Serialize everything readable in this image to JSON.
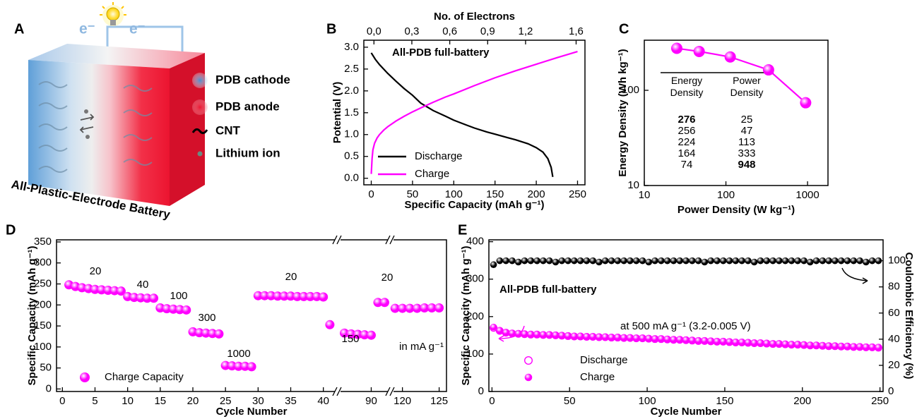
{
  "panel_labels": [
    "A",
    "B",
    "C",
    "D",
    "E"
  ],
  "diagram": {
    "title": "All-Plastic-Electrode Battery",
    "electron_labels": [
      "e⁻",
      "e⁻"
    ],
    "legend": [
      "PDB cathode",
      "PDB anode",
      "CNT",
      "Lithium ion"
    ]
  },
  "chart_data": [
    {
      "type": "line",
      "annotations": [
        "All-PDB full-battery"
      ],
      "xlabel": "Specific Capacity (mAh g⁻¹)",
      "ylabel": "Potential (V)",
      "x2label": "No. of Electrons",
      "xlim": [
        -9,
        259
      ],
      "xticks": [
        0,
        50,
        100,
        150,
        200,
        250
      ],
      "x2lim": [
        -0.08,
        1.67
      ],
      "x2ticks": [
        {
          "value": 0,
          "label": "0,0"
        },
        {
          "value": 0.3,
          "label": "0,3"
        },
        {
          "value": 0.6,
          "label": "0,6"
        },
        {
          "value": 0.9,
          "label": "0,9"
        },
        {
          "value": 1.2,
          "label": "1,2"
        },
        {
          "value": 1.6,
          "label": "1,6"
        }
      ],
      "ylim": [
        -0.15,
        3.16
      ],
      "yticks": [
        {
          "value": 0,
          "label": "0.0"
        },
        0.5,
        {
          "value": 1,
          "label": "1.0"
        },
        1.5,
        {
          "value": 2,
          "label": "2.0"
        },
        2.5,
        {
          "value": 3,
          "label": "3.0"
        }
      ],
      "legend": "lower left",
      "series": [
        {
          "name": "Discharge",
          "color": "#000000",
          "x": [
            0,
            5,
            10,
            20,
            30,
            40,
            50,
            60,
            75,
            90,
            100,
            115,
            125,
            140,
            150,
            165,
            175,
            190,
            200,
            208,
            214,
            218,
            220
          ],
          "values": [
            2.87,
            2.72,
            2.6,
            2.4,
            2.22,
            2.05,
            1.9,
            1.72,
            1.55,
            1.42,
            1.33,
            1.22,
            1.15,
            1.06,
            1.01,
            0.93,
            0.88,
            0.79,
            0.7,
            0.6,
            0.45,
            0.25,
            0.03
          ]
        },
        {
          "name": "Charge",
          "color": "#ff00ff",
          "x": [
            0,
            1,
            2,
            4,
            7,
            10,
            15,
            20,
            30,
            40,
            50,
            60,
            75,
            90,
            100,
            125,
            150,
            175,
            200,
            225,
            250
          ],
          "values": [
            0.1,
            0.45,
            0.65,
            0.8,
            0.92,
            1.0,
            1.1,
            1.18,
            1.31,
            1.42,
            1.52,
            1.61,
            1.74,
            1.86,
            1.93,
            2.12,
            2.3,
            2.46,
            2.61,
            2.76,
            2.9
          ]
        }
      ]
    },
    {
      "type": "line",
      "markers": true,
      "xlabel": "Power Density (W kg⁻¹)",
      "ylabel": "Energy Density (Wh kg⁻¹)",
      "xscale": "log",
      "yscale": "log",
      "xlim": [
        10,
        1780
      ],
      "xticks": [
        10,
        100,
        1000
      ],
      "ylim": [
        10,
        336
      ],
      "yticks": [
        10,
        100
      ],
      "x": [
        25,
        47,
        113,
        333,
        948
      ],
      "series": [
        {
          "color": "#ff00ff",
          "values": [
            276,
            256,
            224,
            164,
            74
          ]
        }
      ],
      "table": {
        "columns": [
          "Energy Density",
          "Power Density"
        ]
      }
    },
    {
      "type": "scatter",
      "xlabel": "Cycle Number",
      "ylabel": "Specific Capacity (mAh g⁻¹)",
      "xlim_segments": [
        [
          -0.9,
          42.2
        ],
        [
          85,
          92.9
        ],
        [
          118.4,
          126
        ]
      ],
      "xticks": [
        0,
        5,
        10,
        15,
        20,
        25,
        30,
        35,
        40,
        90,
        120,
        125
      ],
      "ylim": [
        -6,
        355
      ],
      "yticks": [
        0,
        50,
        100,
        150,
        200,
        250,
        300,
        350
      ],
      "annotations": [
        "20",
        "40",
        "100",
        "300",
        "1000",
        "20",
        "150",
        "20",
        "in mA g⁻¹"
      ],
      "legend": "lower left",
      "series": [
        {
          "name": "Charge Capacity",
          "color": "#ff00ff",
          "x": [
            1,
            2,
            3,
            4,
            5,
            6,
            7,
            8,
            9,
            10,
            11,
            12,
            13,
            14,
            15,
            16,
            17,
            18,
            19,
            20,
            21,
            22,
            23,
            24,
            25,
            26,
            27,
            28,
            29,
            30,
            31,
            32,
            33,
            34,
            35,
            36,
            37,
            38,
            39,
            40,
            41,
            86,
            87,
            88,
            89,
            90,
            91,
            92,
            119,
            120,
            121,
            122,
            123,
            124,
            125
          ],
          "values": [
            248,
            244,
            241,
            239,
            237,
            236,
            235,
            234,
            233,
            220,
            218,
            217,
            216,
            216,
            193,
            191,
            190,
            189,
            188,
            136,
            134,
            133,
            132,
            131,
            56,
            55,
            54,
            54,
            53,
            222,
            222,
            222,
            221,
            221,
            221,
            220,
            220,
            220,
            220,
            219,
            153,
            133,
            131,
            130,
            129,
            128,
            206,
            206,
            192,
            192,
            192,
            192,
            193,
            193,
            193
          ]
        }
      ]
    },
    {
      "type": "scatter",
      "xlabel": "Cycle Number",
      "ylabel": "Specific Capacity (mAh g⁻¹)",
      "y2label": "Coulombic Efficiency (%)",
      "xlim": [
        -2,
        252
      ],
      "xticks": [
        0,
        50,
        100,
        150,
        200,
        250
      ],
      "ylim": [
        0,
        405
      ],
      "yticks": [
        0,
        100,
        200,
        300,
        400
      ],
      "y2lim": [
        0,
        116
      ],
      "y2ticks": [
        0,
        20,
        40,
        60,
        80,
        100
      ],
      "annotations": [
        "All-PDB full-battery",
        "at 500 mA g⁻¹ (3.2-0.005 V)"
      ],
      "legend": "lower left",
      "x": [
        1,
        5,
        9,
        13,
        17,
        21,
        25,
        29,
        33,
        37,
        41,
        45,
        49,
        53,
        57,
        61,
        65,
        69,
        73,
        77,
        81,
        85,
        89,
        93,
        97,
        101,
        105,
        109,
        113,
        117,
        121,
        125,
        129,
        133,
        137,
        141,
        145,
        149,
        153,
        157,
        161,
        165,
        169,
        173,
        177,
        181,
        185,
        189,
        193,
        197,
        201,
        205,
        209,
        213,
        217,
        221,
        225,
        229,
        233,
        237,
        241,
        245,
        249
      ],
      "series": [
        {
          "name": "Discharge",
          "color": "#ff00ff",
          "marker": "open",
          "values": [
            170,
            162,
            157,
            155,
            154,
            153,
            152,
            152,
            151,
            151,
            150,
            149,
            148,
            147,
            147,
            146,
            146,
            145,
            145,
            144,
            144,
            143,
            143,
            142,
            142,
            141,
            140,
            140,
            139,
            138,
            138,
            137,
            136,
            135,
            135,
            134,
            133,
            133,
            132,
            131,
            131,
            130,
            129,
            129,
            128,
            127,
            127,
            126,
            125,
            125,
            124,
            123,
            123,
            122,
            121,
            121,
            120,
            120,
            119,
            119,
            118,
            118,
            117
          ]
        },
        {
          "name": "Charge",
          "color": "#ff00ff",
          "marker": "filled",
          "values": [
            172,
            163,
            158,
            156,
            155,
            154,
            153,
            153,
            152,
            152,
            151,
            150,
            149,
            148,
            148,
            147,
            147,
            146,
            146,
            145,
            145,
            144,
            144,
            143,
            143,
            142,
            141,
            141,
            140,
            139,
            139,
            138,
            137,
            136,
            136,
            135,
            134,
            134,
            133,
            132,
            132,
            131,
            130,
            130,
            129,
            128,
            128,
            127,
            126,
            126,
            125,
            124,
            124,
            123,
            122,
            122,
            121,
            121,
            120,
            120,
            119,
            119,
            118
          ]
        },
        {
          "color": "#000000",
          "marker": "filled",
          "axis": "y2",
          "values": [
            97,
            100,
            100,
            100,
            99,
            100,
            100,
            100,
            100,
            100,
            99,
            100,
            100,
            100,
            100,
            100,
            100,
            99,
            100,
            100,
            100,
            100,
            100,
            100,
            100,
            99,
            100,
            100,
            100,
            100,
            100,
            100,
            100,
            100,
            99,
            100,
            100,
            100,
            100,
            100,
            100,
            100,
            99,
            100,
            100,
            100,
            100,
            100,
            100,
            100,
            100,
            99,
            100,
            100,
            100,
            100,
            100,
            100,
            100,
            100,
            99,
            100,
            100
          ]
        }
      ]
    }
  ]
}
